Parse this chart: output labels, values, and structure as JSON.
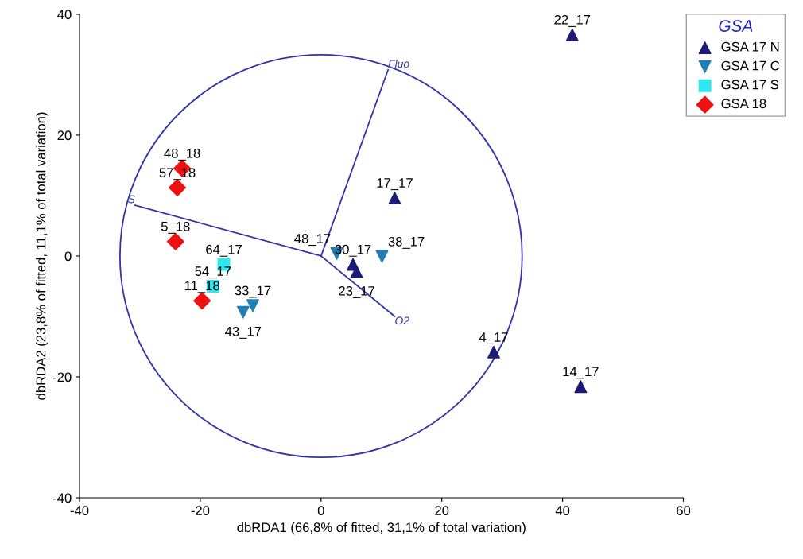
{
  "chart_data": {
    "type": "scatter",
    "xlabel": "dbRDA1 (66,8% of fitted, 31,1% of total variation)",
    "ylabel": "dbRDA2 (23,8% of fitted, 11,1% of total variation)",
    "legend_title": "GSA",
    "legend": "top right",
    "grid": false,
    "xlim": [
      -40,
      60
    ],
    "ylim": [
      -40,
      40
    ],
    "xticks": [
      -40,
      -20,
      0,
      20,
      40,
      60
    ],
    "yticks": [
      -40,
      -20,
      0,
      20,
      40
    ],
    "series": [
      {
        "name": "GSA 17 N",
        "color": "#1c1c78",
        "marker": "triangle",
        "x": [
          41.6,
          12.2,
          28.6,
          43.0,
          5.3,
          5.9
        ],
        "values": [
          36.6,
          9.6,
          -15.9,
          -21.6,
          -1.4,
          -2.6
        ]
      },
      {
        "name": "GSA 17 C",
        "color": "#1f7fb4",
        "marker": "triangle_down",
        "x": [
          -11.3,
          -12.9,
          2.6,
          10.1
        ],
        "values": [
          -8.2,
          -9.3,
          0.4,
          -0.1
        ]
      },
      {
        "name": "GSA 17 S",
        "color": "#2ee8f0",
        "marker": "square",
        "x": [
          -16.1,
          -17.9
        ],
        "values": [
          -1.4,
          -5.0
        ]
      },
      {
        "name": "GSA 18",
        "color": "#ee1111",
        "marker": "diamond",
        "x": [
          -23.0,
          -23.8,
          -24.1,
          -19.7
        ],
        "values": [
          14.5,
          11.3,
          2.4,
          -7.4
        ]
      },
      {
        "name": "Fluo",
        "type": "line",
        "color": "#3333aa",
        "x": [
          0,
          11.1
        ],
        "values": [
          0,
          30.8
        ]
      },
      {
        "name": "S",
        "type": "line",
        "color": "#3333aa",
        "x": [
          0,
          -30.8
        ],
        "values": [
          0,
          8.4
        ]
      },
      {
        "name": "O2",
        "type": "line",
        "color": "#3333aa",
        "x": [
          0,
          12.2
        ],
        "values": [
          0,
          -10.0
        ]
      }
    ],
    "annotations": [
      {
        "text": "22_17",
        "x": 41.6,
        "y": 36.6
      },
      {
        "text": "17_17",
        "x": 12.2,
        "y": 9.6
      },
      {
        "text": "4_17",
        "x": 28.6,
        "y": -15.9
      },
      {
        "text": "14_17",
        "x": 43.0,
        "y": -21.6
      },
      {
        "text": "30_17",
        "x": 5.3,
        "y": -1.4
      },
      {
        "text": "23_17",
        "x": 5.9,
        "y": -2.6
      },
      {
        "text": "33_17",
        "x": -11.3,
        "y": -8.2
      },
      {
        "text": "43_17",
        "x": -12.9,
        "y": -9.3
      },
      {
        "text": "48_17",
        "x": 2.6,
        "y": 0.4
      },
      {
        "text": "38_17",
        "x": 10.1,
        "y": -0.1
      },
      {
        "text": "64_17",
        "x": -16.1,
        "y": -1.4
      },
      {
        "text": "54_17",
        "x": -17.9,
        "y": -5.0
      },
      {
        "text": "48_18",
        "x": -23.0,
        "y": 14.5
      },
      {
        "text": "57_18",
        "x": -23.8,
        "y": 11.3
      },
      {
        "text": "5_18",
        "x": -24.1,
        "y": 2.4
      },
      {
        "text": "11_18",
        "x": -19.7,
        "y": -7.4
      }
    ]
  }
}
